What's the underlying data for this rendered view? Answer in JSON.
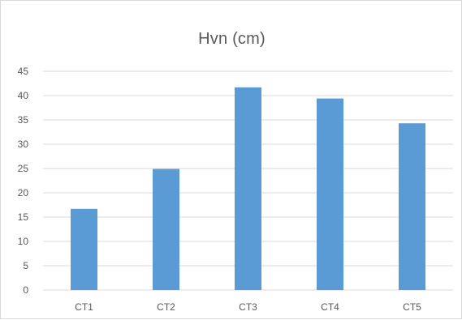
{
  "chart_data": {
    "type": "bar",
    "title": "Hvn (cm)",
    "xlabel": "",
    "ylabel": "",
    "categories": [
      "CT1",
      "CT2",
      "CT3",
      "CT4",
      "CT5"
    ],
    "values": [
      16.7,
      24.9,
      41.7,
      39.4,
      34.3
    ],
    "ylim": [
      0,
      45
    ],
    "yticks": [
      0,
      5,
      10,
      15,
      20,
      25,
      30,
      35,
      40,
      45
    ],
    "grid": true,
    "legend": "none",
    "bar_color": "#5b9bd5",
    "grid_color": "#d9d9d9"
  }
}
